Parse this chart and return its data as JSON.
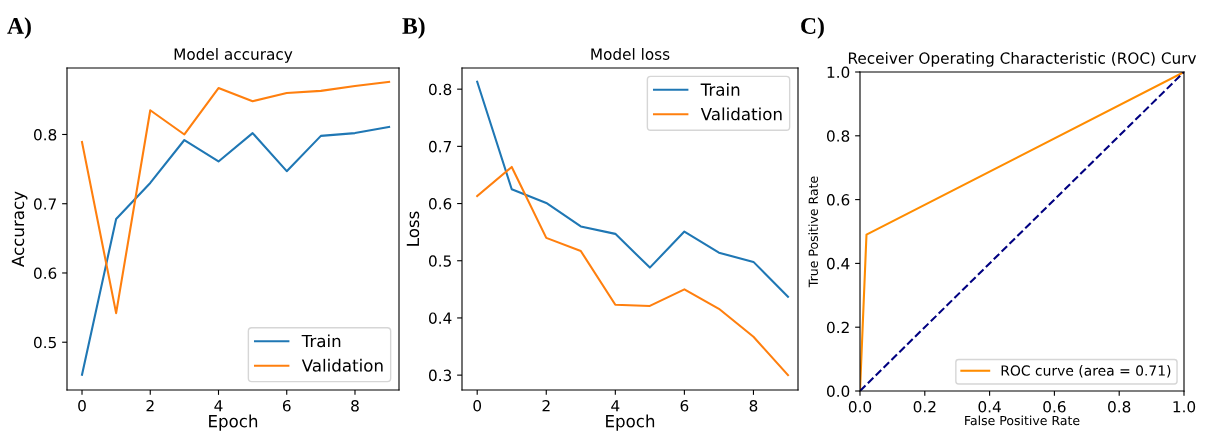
{
  "chart_data": [
    {
      "type": "line",
      "title": "Model accuracy",
      "xlabel": "Epoch",
      "ylabel": "Accuracy",
      "annotations": [
        "A)"
      ],
      "x": [
        0,
        1,
        2,
        3,
        4,
        5,
        6,
        7,
        8,
        9
      ],
      "series": [
        {
          "name": "Train",
          "color": "#1f77b4",
          "values": [
            0.453,
            0.678,
            0.73,
            0.792,
            0.761,
            0.802,
            0.747,
            0.798,
            0.802,
            0.811
          ]
        },
        {
          "name": "Validation",
          "color": "#ff7f0e",
          "values": [
            0.789,
            0.542,
            0.835,
            0.8,
            0.867,
            0.848,
            0.86,
            0.863,
            0.87,
            0.876
          ]
        }
      ],
      "xlim": [
        -0.44,
        9.29
      ],
      "xticks": [
        0,
        2,
        4,
        6,
        8
      ],
      "ylim": [
        0.431,
        0.896
      ],
      "yticks": [
        0.5,
        0.6,
        0.7,
        0.8
      ],
      "legend": "bottom right",
      "grid": false,
      "marker": "none"
    },
    {
      "type": "line",
      "title": "Model loss",
      "xlabel": "Epoch",
      "ylabel": "Loss",
      "annotations": [
        "B)"
      ],
      "x": [
        0,
        1,
        2,
        3,
        4,
        5,
        6,
        7,
        8,
        9
      ],
      "series": [
        {
          "name": "Train",
          "color": "#1f77b4",
          "values": [
            0.813,
            0.625,
            0.601,
            0.56,
            0.547,
            0.488,
            0.551,
            0.514,
            0.498,
            0.437
          ]
        },
        {
          "name": "Validation",
          "color": "#ff7f0e",
          "values": [
            0.613,
            0.664,
            0.54,
            0.517,
            0.423,
            0.421,
            0.45,
            0.416,
            0.367,
            0.3
          ]
        }
      ],
      "xlim": [
        -0.44,
        9.29
      ],
      "xticks": [
        0,
        2,
        4,
        6,
        8
      ],
      "ylim": [
        0.274,
        0.837
      ],
      "yticks": [
        0.3,
        0.4,
        0.5,
        0.6,
        0.7,
        0.8
      ],
      "legend": "top right",
      "grid": false,
      "marker": "none"
    },
    {
      "type": "line",
      "title": "Receiver Operating Characteristic (ROC) Curv",
      "xlabel": "False Positive Rate",
      "ylabel": "True Positive Rate",
      "annotations": [
        "C)"
      ],
      "series": [
        {
          "name": "ROC curve (area = 0.71)",
          "color": "#ff8c00",
          "x": [
            0,
            0.02,
            1
          ],
          "values": [
            0,
            0.49,
            1
          ],
          "line_style": "solid"
        },
        {
          "color": "#000080",
          "x": [
            0,
            1
          ],
          "values": [
            0,
            1
          ],
          "line_style": "dashed"
        }
      ],
      "xlim": [
        0,
        1
      ],
      "xticks": [
        {
          "value": 0,
          "label": "0.0"
        },
        0.2,
        0.4,
        0.6,
        0.8,
        {
          "value": 1,
          "label": "1.0"
        }
      ],
      "ylim": [
        0,
        1
      ],
      "yticks": [
        {
          "value": 0,
          "label": "0.0"
        },
        0.2,
        0.4,
        0.6,
        0.8,
        {
          "value": 1,
          "label": "1.0"
        }
      ],
      "legend": "bottom right",
      "grid": false,
      "marker": "none"
    }
  ]
}
